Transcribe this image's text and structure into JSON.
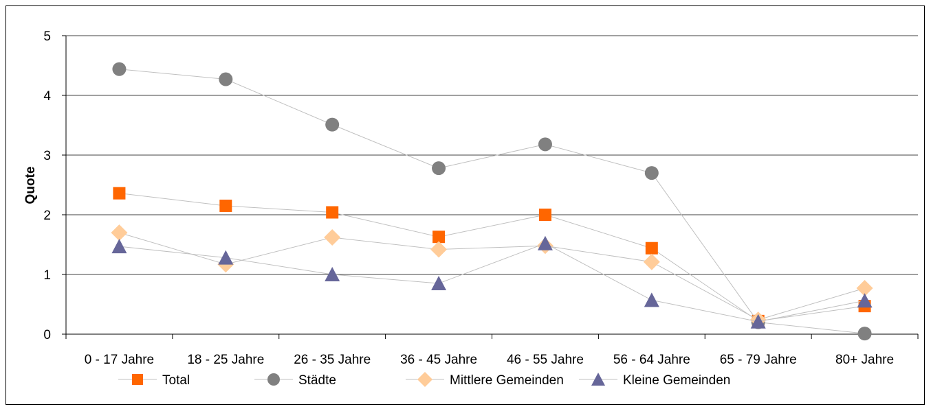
{
  "chart_data": {
    "type": "line",
    "title": "",
    "xlabel": "",
    "ylabel": "Quote",
    "ylim": [
      0,
      5
    ],
    "yticks": [
      "0",
      "1",
      "2",
      "3",
      "4",
      "5"
    ],
    "grid": true,
    "legend_position": "bottom",
    "categories": [
      "0 - 17 Jahre",
      "18 - 25 Jahre",
      "26 - 35 Jahre",
      "36 - 45 Jahre",
      "46 - 55 Jahre",
      "56 - 64 Jahre",
      "65 - 79 Jahre",
      "80+ Jahre"
    ],
    "series": [
      {
        "name": "Total",
        "marker": "square",
        "color": "#ff6600",
        "values": [
          2.36,
          2.15,
          2.04,
          1.63,
          2.0,
          1.44,
          0.22,
          0.47
        ]
      },
      {
        "name": "Städte",
        "marker": "circle",
        "color": "#808080",
        "values": [
          4.44,
          4.27,
          3.51,
          2.78,
          3.18,
          2.7,
          0.2,
          0.01
        ]
      },
      {
        "name": "Mittlere Gemeinden",
        "marker": "diamond",
        "color": "#ffcc99",
        "values": [
          1.7,
          1.17,
          1.62,
          1.42,
          1.48,
          1.21,
          0.24,
          0.77
        ]
      },
      {
        "name": "Kleine Gemeinden",
        "marker": "triangle",
        "color": "#666699",
        "values": [
          1.47,
          1.28,
          1.0,
          0.85,
          1.52,
          0.57,
          0.21,
          0.56
        ]
      }
    ],
    "line_color": "#c0c0c0"
  }
}
